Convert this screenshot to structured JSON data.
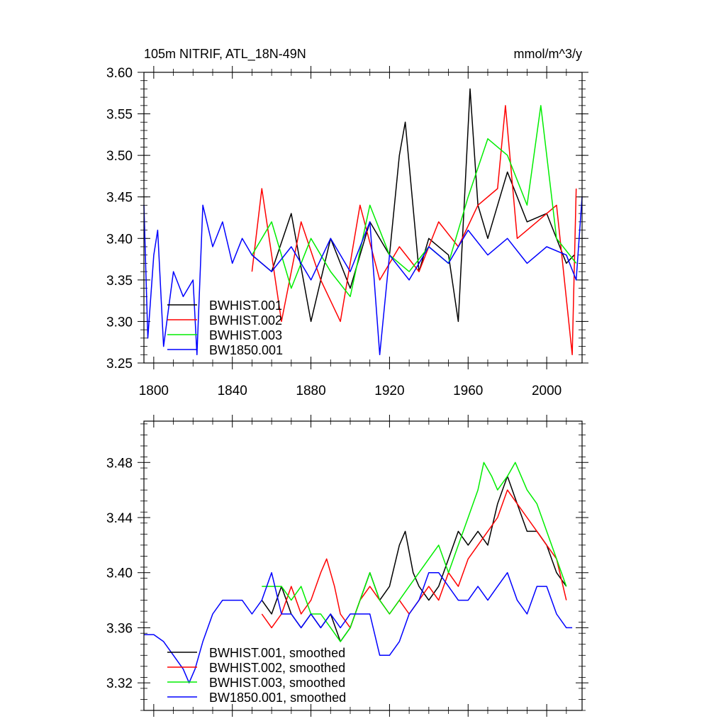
{
  "chart_data": [
    {
      "type": "line",
      "title": "105m NITRIF, ATL_18N-49N",
      "units": "mmol/m^3/y",
      "xlim": [
        1795,
        2018
      ],
      "ylim": [
        3.25,
        3.6
      ],
      "yticks": [
        "3.25",
        "3.30",
        "3.35",
        "3.40",
        "3.45",
        "3.50",
        "3.55",
        "3.60"
      ],
      "xticks": [
        "1800",
        "1840",
        "1880",
        "1920",
        "1960",
        "2000"
      ],
      "legend_position": "lower-left",
      "series": [
        {
          "name": "BWHIST.001",
          "color": "#000000",
          "x": [
            1850,
            1860,
            1870,
            1880,
            1890,
            1900,
            1910,
            1920,
            1925,
            1928,
            1935,
            1940,
            1950,
            1955,
            1961,
            1965,
            1970,
            1980,
            1990,
            2000,
            2010,
            2014
          ],
          "values": [
            3.38,
            3.36,
            3.43,
            3.3,
            3.4,
            3.34,
            3.42,
            3.38,
            3.5,
            3.54,
            3.36,
            3.4,
            3.38,
            3.3,
            3.58,
            3.44,
            3.4,
            3.48,
            3.42,
            3.43,
            3.37,
            3.38
          ]
        },
        {
          "name": "BWHIST.002",
          "color": "#ff0000",
          "x": [
            1850,
            1855,
            1865,
            1875,
            1885,
            1895,
            1905,
            1915,
            1925,
            1935,
            1945,
            1955,
            1965,
            1975,
            1979,
            1985,
            1995,
            2005,
            2013,
            2015
          ],
          "values": [
            3.36,
            3.46,
            3.3,
            3.42,
            3.35,
            3.3,
            3.44,
            3.35,
            3.39,
            3.36,
            3.42,
            3.39,
            3.44,
            3.46,
            3.56,
            3.4,
            3.42,
            3.44,
            3.26,
            3.46
          ]
        },
        {
          "name": "BWHIST.003",
          "color": "#00ee00",
          "x": [
            1850,
            1860,
            1870,
            1880,
            1890,
            1900,
            1910,
            1920,
            1930,
            1940,
            1950,
            1960,
            1970,
            1980,
            1990,
            1997,
            2005,
            2015
          ],
          "values": [
            3.38,
            3.42,
            3.34,
            3.4,
            3.36,
            3.33,
            3.44,
            3.38,
            3.36,
            3.39,
            3.37,
            3.45,
            3.52,
            3.5,
            3.44,
            3.56,
            3.4,
            3.37
          ]
        },
        {
          "name": "BW1850.001",
          "color": "#0000ff",
          "x": [
            1795,
            1797,
            1800,
            1802,
            1805,
            1810,
            1815,
            1820,
            1822,
            1825,
            1830,
            1835,
            1840,
            1845,
            1850,
            1860,
            1870,
            1880,
            1890,
            1900,
            1910,
            1915,
            1920,
            1930,
            1940,
            1950,
            1960,
            1970,
            1980,
            1990,
            2000,
            2010,
            2015,
            2018
          ],
          "values": [
            3.44,
            3.28,
            3.38,
            3.41,
            3.27,
            3.36,
            3.33,
            3.35,
            3.26,
            3.44,
            3.39,
            3.42,
            3.37,
            3.4,
            3.38,
            3.36,
            3.39,
            3.35,
            3.4,
            3.36,
            3.42,
            3.26,
            3.38,
            3.35,
            3.39,
            3.37,
            3.41,
            3.38,
            3.4,
            3.37,
            3.39,
            3.38,
            3.35,
            3.45
          ]
        }
      ]
    },
    {
      "type": "line",
      "title": "",
      "xlim": [
        1795,
        2018
      ],
      "ylim": [
        3.3,
        3.51
      ],
      "yticks": [
        "3.32",
        "3.36",
        "3.40",
        "3.44",
        "3.48"
      ],
      "legend_position": "lower-left",
      "series": [
        {
          "name": "BWHIST.001, smoothed",
          "color": "#000000",
          "x": [
            1855,
            1860,
            1865,
            1870,
            1875,
            1880,
            1885,
            1890,
            1895,
            1900,
            1905,
            1910,
            1915,
            1920,
            1925,
            1928,
            1932,
            1935,
            1940,
            1945,
            1950,
            1955,
            1960,
            1965,
            1970,
            1975,
            1980,
            1985,
            1990,
            1995,
            2000,
            2005,
            2010
          ],
          "values": [
            3.38,
            3.37,
            3.39,
            3.37,
            3.36,
            3.37,
            3.36,
            3.37,
            3.35,
            3.36,
            3.38,
            3.4,
            3.38,
            3.39,
            3.42,
            3.43,
            3.4,
            3.39,
            3.38,
            3.39,
            3.41,
            3.43,
            3.42,
            3.43,
            3.42,
            3.45,
            3.47,
            3.45,
            3.43,
            3.43,
            3.42,
            3.4,
            3.39
          ]
        },
        {
          "name": "BWHIST.002, smoothed",
          "color": "#ff0000",
          "x": [
            1855,
            1860,
            1865,
            1870,
            1875,
            1880,
            1885,
            1888,
            1892,
            1895,
            1900,
            1905,
            1910,
            1915,
            1920,
            1925,
            1930,
            1935,
            1940,
            1945,
            1950,
            1955,
            1960,
            1965,
            1970,
            1975,
            1980,
            1985,
            1990,
            1995,
            2000,
            2005,
            2010
          ],
          "values": [
            3.37,
            3.36,
            3.37,
            3.39,
            3.37,
            3.38,
            3.4,
            3.41,
            3.39,
            3.37,
            3.36,
            3.38,
            3.39,
            3.38,
            3.37,
            3.38,
            3.37,
            3.38,
            3.39,
            3.38,
            3.4,
            3.39,
            3.41,
            3.42,
            3.43,
            3.44,
            3.46,
            3.45,
            3.44,
            3.43,
            3.42,
            3.41,
            3.38
          ]
        },
        {
          "name": "BWHIST.003, smoothed",
          "color": "#00ee00",
          "x": [
            1855,
            1860,
            1865,
            1870,
            1875,
            1880,
            1885,
            1890,
            1895,
            1900,
            1905,
            1910,
            1915,
            1920,
            1925,
            1930,
            1935,
            1940,
            1945,
            1950,
            1955,
            1960,
            1965,
            1968,
            1972,
            1975,
            1980,
            1984,
            1990,
            1995,
            2000,
            2005,
            2010
          ],
          "values": [
            3.39,
            3.39,
            3.39,
            3.38,
            3.39,
            3.37,
            3.37,
            3.36,
            3.35,
            3.36,
            3.38,
            3.4,
            3.38,
            3.37,
            3.38,
            3.39,
            3.4,
            3.41,
            3.42,
            3.4,
            3.42,
            3.44,
            3.46,
            3.48,
            3.47,
            3.46,
            3.47,
            3.48,
            3.46,
            3.45,
            3.43,
            3.41,
            3.39
          ]
        },
        {
          "name": "BW1850.001, smoothed",
          "color": "#0000ff",
          "x": [
            1795,
            1800,
            1805,
            1810,
            1815,
            1818,
            1821,
            1825,
            1830,
            1835,
            1840,
            1845,
            1850,
            1855,
            1860,
            1865,
            1870,
            1875,
            1880,
            1885,
            1890,
            1895,
            1900,
            1905,
            1910,
            1915,
            1920,
            1925,
            1930,
            1935,
            1940,
            1945,
            1950,
            1955,
            1960,
            1965,
            1970,
            1975,
            1980,
            1985,
            1990,
            1995,
            2000,
            2005,
            2010,
            2013
          ],
          "values": [
            3.355,
            3.355,
            3.35,
            3.34,
            3.33,
            3.32,
            3.33,
            3.35,
            3.37,
            3.38,
            3.38,
            3.38,
            3.37,
            3.38,
            3.4,
            3.37,
            3.37,
            3.36,
            3.37,
            3.36,
            3.37,
            3.36,
            3.37,
            3.37,
            3.37,
            3.34,
            3.34,
            3.35,
            3.37,
            3.38,
            3.4,
            3.4,
            3.39,
            3.38,
            3.38,
            3.39,
            3.38,
            3.39,
            3.4,
            3.38,
            3.37,
            3.39,
            3.39,
            3.37,
            3.36,
            3.36
          ]
        }
      ]
    }
  ]
}
